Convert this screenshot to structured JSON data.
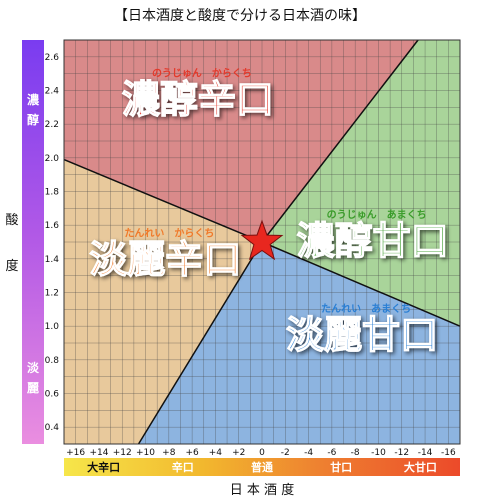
{
  "chart_data": {
    "type": "scatter",
    "title": "【日本酒度と酸度で分ける日本酒の味】",
    "xlabel": "日 本 酒 度",
    "ylabel": [
      "酸",
      "度"
    ],
    "x_ticks": [
      16,
      14,
      12,
      10,
      8,
      6,
      4,
      2,
      0,
      -2,
      -4,
      -6,
      -8,
      -10,
      -12,
      -14,
      -16
    ],
    "x_tick_labels": [
      "+16",
      "+14",
      "+12",
      "+10",
      "+8",
      "+6",
      "+4",
      "+2",
      "0",
      "-2",
      "-4",
      "-6",
      "-8",
      "-10",
      "-12",
      "-14",
      "-16"
    ],
    "xlim": [
      17,
      -17
    ],
    "x_reversed": true,
    "y_ticks": [
      0.4,
      0.6,
      0.8,
      1.0,
      1.2,
      1.4,
      1.6,
      1.8,
      2.0,
      2.2,
      2.4,
      2.6
    ],
    "y_tick_labels": [
      "0.4",
      "0.6",
      "0.8",
      "1.0",
      "1.2",
      "1.4",
      "1.6",
      "1.8",
      "2.0",
      "2.2",
      "2.4",
      "2.6"
    ],
    "ylim": [
      0.3,
      2.7
    ],
    "grid": true,
    "center_point": {
      "x": 0,
      "y": 1.5,
      "marker": "star",
      "color": "#e8271f"
    },
    "regions": [
      {
        "name": "濃醇辛口",
        "ruby": "のうじゅん　からくち",
        "color": "#d98a8a",
        "text_color": "#e33a2c",
        "polygon": [
          [
            17,
            1.99
          ],
          [
            0,
            1.5
          ],
          [
            -13.4,
            2.7
          ],
          [
            17,
            2.7
          ]
        ]
      },
      {
        "name": "濃醇甘口",
        "ruby": "のうじゅん　あまくち",
        "color": "#a9d49a",
        "text_color": "#3a9c2a",
        "polygon": [
          [
            -13.4,
            2.7
          ],
          [
            0,
            1.5
          ],
          [
            -17,
            1.0
          ],
          [
            -17,
            2.7
          ]
        ]
      },
      {
        "name": "淡麗甘口",
        "ruby": "たんれい　あまくち",
        "color": "#8db4e0",
        "text_color": "#2a7fd4",
        "polygon": [
          [
            0,
            1.5
          ],
          [
            -17,
            1.0
          ],
          [
            -17,
            0.3
          ],
          [
            10.6,
            0.3
          ]
        ]
      },
      {
        "name": "淡麗辛口",
        "ruby": "たんれい　からくち",
        "color": "#e8c99c",
        "text_color": "#f07a2a",
        "polygon": [
          [
            17,
            1.99
          ],
          [
            0,
            1.5
          ],
          [
            10.6,
            0.3
          ],
          [
            17,
            0.3
          ]
        ]
      }
    ],
    "bottom_scale": {
      "labels": [
        "大辛口",
        "辛口",
        "普通",
        "甘口",
        "大甘口"
      ],
      "label_colors": [
        "#111111",
        "#ffffff",
        "#ffffff",
        "#ffffff",
        "#ffffff"
      ],
      "gradient": [
        "#f6e64a",
        "#f2b82e",
        "#ee8030",
        "#ec4a2a"
      ]
    },
    "side_scale": {
      "top_label": [
        "濃",
        "醇"
      ],
      "bottom_label": [
        "淡",
        "麗"
      ],
      "gradient": [
        "#7a3cf0",
        "#b35ae6",
        "#ea8ee0"
      ]
    }
  }
}
